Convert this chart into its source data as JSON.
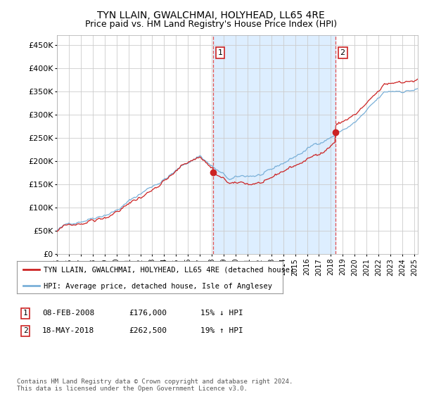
{
  "title": "TYN LLAIN, GWALCHMAI, HOLYHEAD, LL65 4RE",
  "subtitle": "Price paid vs. HM Land Registry's House Price Index (HPI)",
  "ylabel_ticks": [
    "£0",
    "£50K",
    "£100K",
    "£150K",
    "£200K",
    "£250K",
    "£300K",
    "£350K",
    "£400K",
    "£450K"
  ],
  "ytick_vals": [
    0,
    50000,
    100000,
    150000,
    200000,
    250000,
    300000,
    350000,
    400000,
    450000
  ],
  "ylim": [
    0,
    470000
  ],
  "xlim_start": 1995.0,
  "xlim_end": 2025.3,
  "sale1_x": 2008.1,
  "sale1_price": 176000,
  "sale1_label": "1",
  "sale2_x": 2018.38,
  "sale2_price": 262500,
  "sale2_label": "2",
  "vline_color": "#e05050",
  "shade_color": "#ddeeff",
  "plot_bg": "#ffffff",
  "grid_color": "#cccccc",
  "hpi_color": "#7ab0d8",
  "sale_color": "#cc2222",
  "legend_label_sale": "TYN LLAIN, GWALCHMAI, HOLYHEAD, LL65 4RE (detached house)",
  "legend_label_hpi": "HPI: Average price, detached house, Isle of Anglesey",
  "annotation1_date": "08-FEB-2008",
  "annotation1_price": "£176,000",
  "annotation1_hpi": "15% ↓ HPI",
  "annotation2_date": "18-MAY-2018",
  "annotation2_price": "£262,500",
  "annotation2_hpi": "19% ↑ HPI",
  "footnote": "Contains HM Land Registry data © Crown copyright and database right 2024.\nThis data is licensed under the Open Government Licence v3.0.",
  "title_fontsize": 10,
  "subtitle_fontsize": 9
}
